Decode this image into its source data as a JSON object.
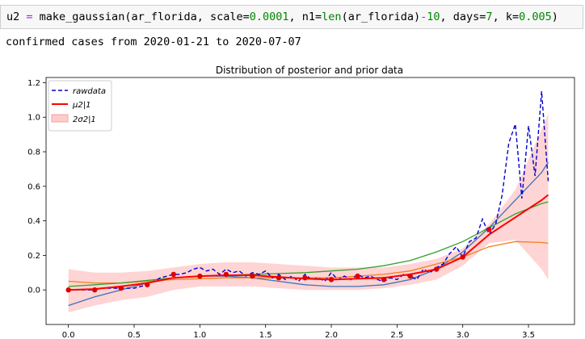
{
  "code": {
    "var": "u2",
    "op": " = ",
    "fn": "make_gaussian(ar_florida, scale=",
    "n1": "0.0001",
    "p2": ", n1=",
    "len": "len",
    "p3": "(ar_florida)",
    "minus": "-",
    "n2": "10",
    "p4": ", days=",
    "n3": "7",
    "p5": ", k=",
    "n4": "0.005",
    "p6": ")"
  },
  "output_text": "confirmed cases from 2020-01-21 to 2020-07-07",
  "colors": {
    "raw": "#0000cc",
    "mu": "#ff0000",
    "band": "#ffcccc",
    "fit_blue": "#3b74b8",
    "fit_orange": "#f08020",
    "fit_green": "#33a02c",
    "num": "#008800",
    "op": "#aa22ff",
    "builtin": "#008000"
  },
  "chart_data": {
    "type": "line",
    "title": "Distribution of posterior and prior data",
    "xlim": [
      -0.17,
      3.85
    ],
    "ylim": [
      -0.2,
      1.23
    ],
    "xticks": [
      0.0,
      0.5,
      1.0,
      1.5,
      2.0,
      2.5,
      3.0,
      3.5
    ],
    "xtick_labels": [
      "0.0",
      "0.5",
      "1.0",
      "1.5",
      "2.0",
      "2.5",
      "3.0",
      "3.5"
    ],
    "yticks": [
      0.0,
      0.2,
      0.4,
      0.6,
      0.8,
      1.0,
      1.2
    ],
    "ytick_labels": [
      "0.0",
      "0.2",
      "0.4",
      "0.6",
      "0.8",
      "1.0",
      "1.2"
    ],
    "legend": {
      "position": "top-left",
      "entries": [
        {
          "label": "rawdata",
          "style": "dashed"
        },
        {
          "label": "μ2|1",
          "style": "solid"
        },
        {
          "label": "2σ2|1",
          "style": "fill"
        }
      ]
    },
    "rawdata": {
      "x": [
        0.0,
        0.05,
        0.1,
        0.15,
        0.2,
        0.25,
        0.3,
        0.35,
        0.4,
        0.45,
        0.5,
        0.55,
        0.6,
        0.65,
        0.7,
        0.75,
        0.8,
        0.85,
        0.9,
        0.95,
        1.0,
        1.05,
        1.1,
        1.15,
        1.2,
        1.25,
        1.3,
        1.35,
        1.4,
        1.45,
        1.5,
        1.55,
        1.6,
        1.65,
        1.7,
        1.75,
        1.8,
        1.85,
        1.9,
        1.95,
        2.0,
        2.05,
        2.1,
        2.15,
        2.2,
        2.25,
        2.3,
        2.35,
        2.4,
        2.45,
        2.5,
        2.55,
        2.6,
        2.65,
        2.7,
        2.75,
        2.8,
        2.85,
        2.9,
        2.95,
        3.0,
        3.05,
        3.1,
        3.15,
        3.2,
        3.25,
        3.3,
        3.35,
        3.4,
        3.45,
        3.5,
        3.55,
        3.6,
        3.65
      ],
      "y": [
        0.0,
        0.0,
        0.0,
        0.0,
        0.0,
        0.01,
        0.01,
        0.01,
        0.01,
        0.01,
        0.01,
        0.02,
        0.03,
        0.05,
        0.07,
        0.08,
        0.09,
        0.09,
        0.1,
        0.12,
        0.13,
        0.11,
        0.12,
        0.09,
        0.12,
        0.1,
        0.11,
        0.08,
        0.1,
        0.09,
        0.11,
        0.07,
        0.09,
        0.06,
        0.08,
        0.05,
        0.09,
        0.06,
        0.07,
        0.05,
        0.1,
        0.06,
        0.08,
        0.06,
        0.09,
        0.07,
        0.08,
        0.06,
        0.05,
        0.07,
        0.06,
        0.09,
        0.08,
        0.06,
        0.12,
        0.1,
        0.13,
        0.15,
        0.21,
        0.25,
        0.19,
        0.28,
        0.3,
        0.41,
        0.32,
        0.38,
        0.55,
        0.85,
        0.96,
        0.53,
        0.95,
        0.66,
        1.15,
        0.63
      ]
    },
    "posterior_mean": {
      "x": [
        0.0,
        0.2,
        0.4,
        0.6,
        0.8,
        1.0,
        1.2,
        1.4,
        1.6,
        1.8,
        2.0,
        2.2,
        2.4,
        2.6,
        2.8,
        3.0,
        3.2,
        3.4,
        3.6,
        3.65
      ],
      "y": [
        0.0,
        0.005,
        0.02,
        0.04,
        0.07,
        0.08,
        0.085,
        0.085,
        0.075,
        0.065,
        0.06,
        0.065,
        0.07,
        0.09,
        0.12,
        0.19,
        0.32,
        0.42,
        0.52,
        0.55
      ]
    },
    "band_upper": {
      "x": [
        0.0,
        0.2,
        0.4,
        0.6,
        0.8,
        1.0,
        1.2,
        1.4,
        1.6,
        1.8,
        2.0,
        2.2,
        2.4,
        2.6,
        2.8,
        3.0,
        3.2,
        3.4,
        3.6,
        3.65
      ],
      "y": [
        0.12,
        0.1,
        0.1,
        0.11,
        0.13,
        0.15,
        0.16,
        0.16,
        0.15,
        0.14,
        0.13,
        0.13,
        0.13,
        0.15,
        0.18,
        0.24,
        0.38,
        0.58,
        0.93,
        1.02
      ]
    },
    "band_lower": {
      "x": [
        0.0,
        0.2,
        0.4,
        0.6,
        0.8,
        1.0,
        1.2,
        1.4,
        1.6,
        1.8,
        2.0,
        2.2,
        2.4,
        2.6,
        2.8,
        3.0,
        3.2,
        3.4,
        3.6,
        3.65
      ],
      "y": [
        -0.13,
        -0.09,
        -0.06,
        -0.04,
        0.0,
        0.02,
        0.02,
        0.02,
        0.01,
        0.0,
        0.0,
        0.0,
        0.01,
        0.03,
        0.06,
        0.14,
        0.27,
        0.29,
        0.12,
        0.06
      ]
    },
    "observations": {
      "x": [
        0.0,
        0.2,
        0.4,
        0.6,
        0.8,
        1.0,
        1.2,
        1.4,
        1.6,
        1.8,
        2.0,
        2.2,
        2.4,
        2.6,
        2.8,
        3.0,
        3.2
      ],
      "y": [
        0.0,
        0.0,
        0.01,
        0.03,
        0.09,
        0.08,
        0.09,
        0.08,
        0.07,
        0.07,
        0.06,
        0.08,
        0.06,
        0.08,
        0.12,
        0.19,
        0.35
      ]
    },
    "fit_blue": {
      "x": [
        0.0,
        0.2,
        0.4,
        0.6,
        0.8,
        1.0,
        1.2,
        1.4,
        1.6,
        1.8,
        2.0,
        2.2,
        2.4,
        2.6,
        2.8,
        3.0,
        3.2,
        3.4,
        3.6,
        3.65
      ],
      "y": [
        -0.09,
        -0.04,
        0.0,
        0.04,
        0.07,
        0.08,
        0.08,
        0.07,
        0.05,
        0.03,
        0.02,
        0.02,
        0.03,
        0.06,
        0.12,
        0.22,
        0.36,
        0.52,
        0.68,
        0.74
      ]
    },
    "fit_orange": {
      "x": [
        0.0,
        0.2,
        0.4,
        0.6,
        0.8,
        1.0,
        1.2,
        1.4,
        1.6,
        1.8,
        2.0,
        2.2,
        2.4,
        2.6,
        2.8,
        3.0,
        3.2,
        3.4,
        3.6,
        3.65
      ],
      "y": [
        0.05,
        0.04,
        0.04,
        0.05,
        0.06,
        0.065,
        0.07,
        0.07,
        0.07,
        0.07,
        0.07,
        0.08,
        0.09,
        0.11,
        0.15,
        0.19,
        0.25,
        0.28,
        0.275,
        0.27
      ]
    },
    "fit_green": {
      "x": [
        0.0,
        0.2,
        0.4,
        0.6,
        0.8,
        1.0,
        1.2,
        1.4,
        1.6,
        1.8,
        2.0,
        2.2,
        2.4,
        2.6,
        2.8,
        3.0,
        3.2,
        3.4,
        3.6,
        3.65
      ],
      "y": [
        0.02,
        0.03,
        0.04,
        0.055,
        0.07,
        0.08,
        0.085,
        0.09,
        0.095,
        0.1,
        0.11,
        0.12,
        0.14,
        0.17,
        0.22,
        0.28,
        0.36,
        0.44,
        0.5,
        0.51
      ]
    }
  }
}
